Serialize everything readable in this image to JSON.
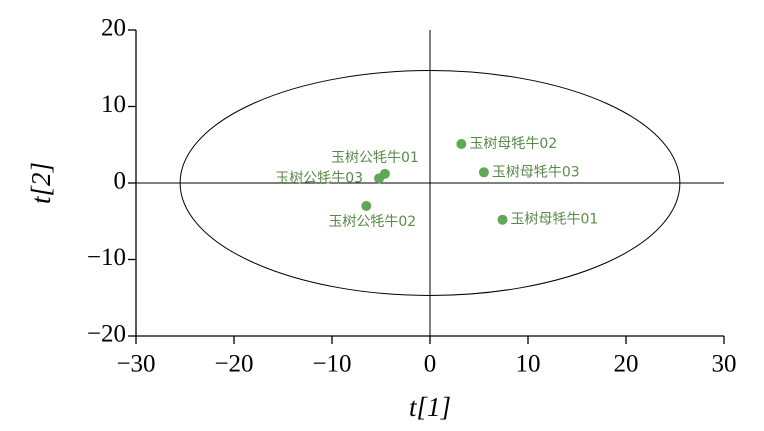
{
  "chart_data": {
    "type": "scatter",
    "x_label": "t[1]",
    "y_label": "t[2]",
    "point_labels": [
      "玉树母牦牛02",
      "玉树公牦牛01",
      "玉树公牦牛03",
      "玉树母牦牛03",
      "玉树公牦牛02",
      "玉树母牦牛01"
    ],
    "x": [
      3.2,
      -4.6,
      -5.2,
      5.5,
      -6.5,
      7.4
    ],
    "values": [
      5.1,
      1.2,
      0.6,
      1.4,
      -3.0,
      -4.8
    ],
    "color": "#5fa855",
    "ellipse": {
      "rx": 25.5,
      "ry": 14.7
    },
    "xlim": [
      -30,
      30
    ],
    "xticks": [
      {
        "value": -30,
        "label": "−30"
      },
      {
        "value": -20,
        "label": "−20"
      },
      {
        "value": -10,
        "label": "−10"
      },
      0,
      10,
      20,
      30
    ],
    "ylim": [
      -20,
      20
    ],
    "yticks": [
      {
        "value": -20,
        "label": "−20"
      },
      {
        "value": -10,
        "label": "−10"
      },
      0,
      10,
      20
    ]
  }
}
